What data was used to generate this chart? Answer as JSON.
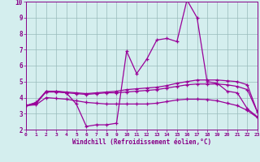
{
  "x": [
    0,
    1,
    2,
    3,
    4,
    5,
    6,
    7,
    8,
    9,
    10,
    11,
    12,
    13,
    14,
    15,
    16,
    17,
    18,
    19,
    20,
    21,
    22,
    23
  ],
  "line1": [
    3.5,
    3.6,
    4.4,
    4.4,
    4.3,
    3.6,
    2.2,
    2.3,
    2.3,
    2.4,
    6.9,
    5.5,
    6.4,
    7.6,
    7.7,
    7.5,
    10.1,
    9.0,
    5.0,
    4.9,
    4.4,
    4.3,
    3.3,
    2.8
  ],
  "line2": [
    3.5,
    3.7,
    4.4,
    4.4,
    4.35,
    4.3,
    4.25,
    4.3,
    4.35,
    4.4,
    4.5,
    4.55,
    4.6,
    4.65,
    4.75,
    4.9,
    5.0,
    5.1,
    5.1,
    5.1,
    5.05,
    5.0,
    4.8,
    3.1
  ],
  "line3": [
    3.5,
    3.65,
    4.35,
    4.35,
    4.3,
    4.25,
    4.2,
    4.25,
    4.3,
    4.3,
    4.35,
    4.4,
    4.45,
    4.5,
    4.6,
    4.7,
    4.8,
    4.85,
    4.85,
    4.85,
    4.8,
    4.7,
    4.5,
    3.1
  ],
  "line4": [
    3.5,
    3.55,
    4.0,
    3.95,
    3.9,
    3.8,
    3.7,
    3.65,
    3.6,
    3.6,
    3.6,
    3.6,
    3.6,
    3.65,
    3.75,
    3.85,
    3.9,
    3.9,
    3.88,
    3.8,
    3.65,
    3.5,
    3.2,
    2.75
  ],
  "line_color": "#990099",
  "bg_color": "#d4eeee",
  "grid_color": "#99bbbb",
  "xlabel": "Windchill (Refroidissement éolien,°C)",
  "xlim": [
    0,
    23
  ],
  "ylim": [
    2,
    10
  ],
  "xticks": [
    0,
    1,
    2,
    3,
    4,
    5,
    6,
    7,
    8,
    9,
    10,
    11,
    12,
    13,
    14,
    15,
    16,
    17,
    18,
    19,
    20,
    21,
    22,
    23
  ],
  "yticks": [
    2,
    3,
    4,
    5,
    6,
    7,
    8,
    9,
    10
  ],
  "tick_color": "#880088",
  "spine_color": "#880088"
}
